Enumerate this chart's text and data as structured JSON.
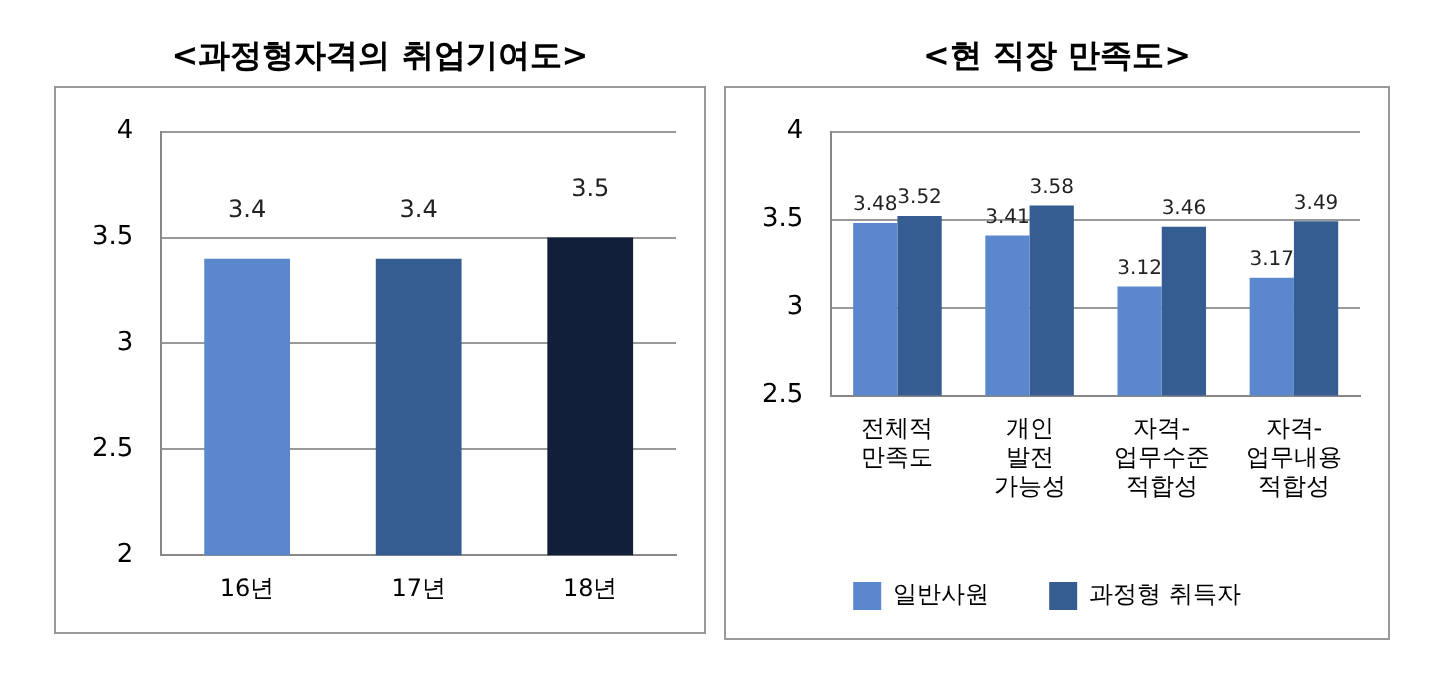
{
  "chart_data": [
    {
      "type": "bar",
      "title": "<과정형자격의 취업기여도>",
      "categories": [
        "16년",
        "17년",
        "18년"
      ],
      "values": [
        3.4,
        3.4,
        3.5
      ],
      "colors": [
        "#5b87cc",
        "#355d91",
        "#121f3a"
      ],
      "ylim": [
        2,
        4
      ],
      "yticks": [
        2,
        2.5,
        3,
        3.5,
        4
      ],
      "grid": "y",
      "legend": false,
      "data_labels": true
    },
    {
      "type": "bar",
      "title": "<현 직장 만족도>",
      "categories": [
        "전체적\n만족도",
        "개인\n발전\n가능성",
        "자격-\n업무수준\n적합성",
        "자격-\n업무내용\n적합성"
      ],
      "series": [
        {
          "name": "일반사원",
          "color": "#5b87cc",
          "values": [
            3.48,
            3.41,
            3.12,
            3.17
          ]
        },
        {
          "name": "과정형 취득자",
          "color": "#355d91",
          "values": [
            3.52,
            3.58,
            3.46,
            3.49
          ]
        }
      ],
      "ylim": [
        2.5,
        4
      ],
      "yticks": [
        2.5,
        3,
        3.5,
        4
      ],
      "grid": "y",
      "legend": "bottom",
      "data_labels": true
    }
  ]
}
